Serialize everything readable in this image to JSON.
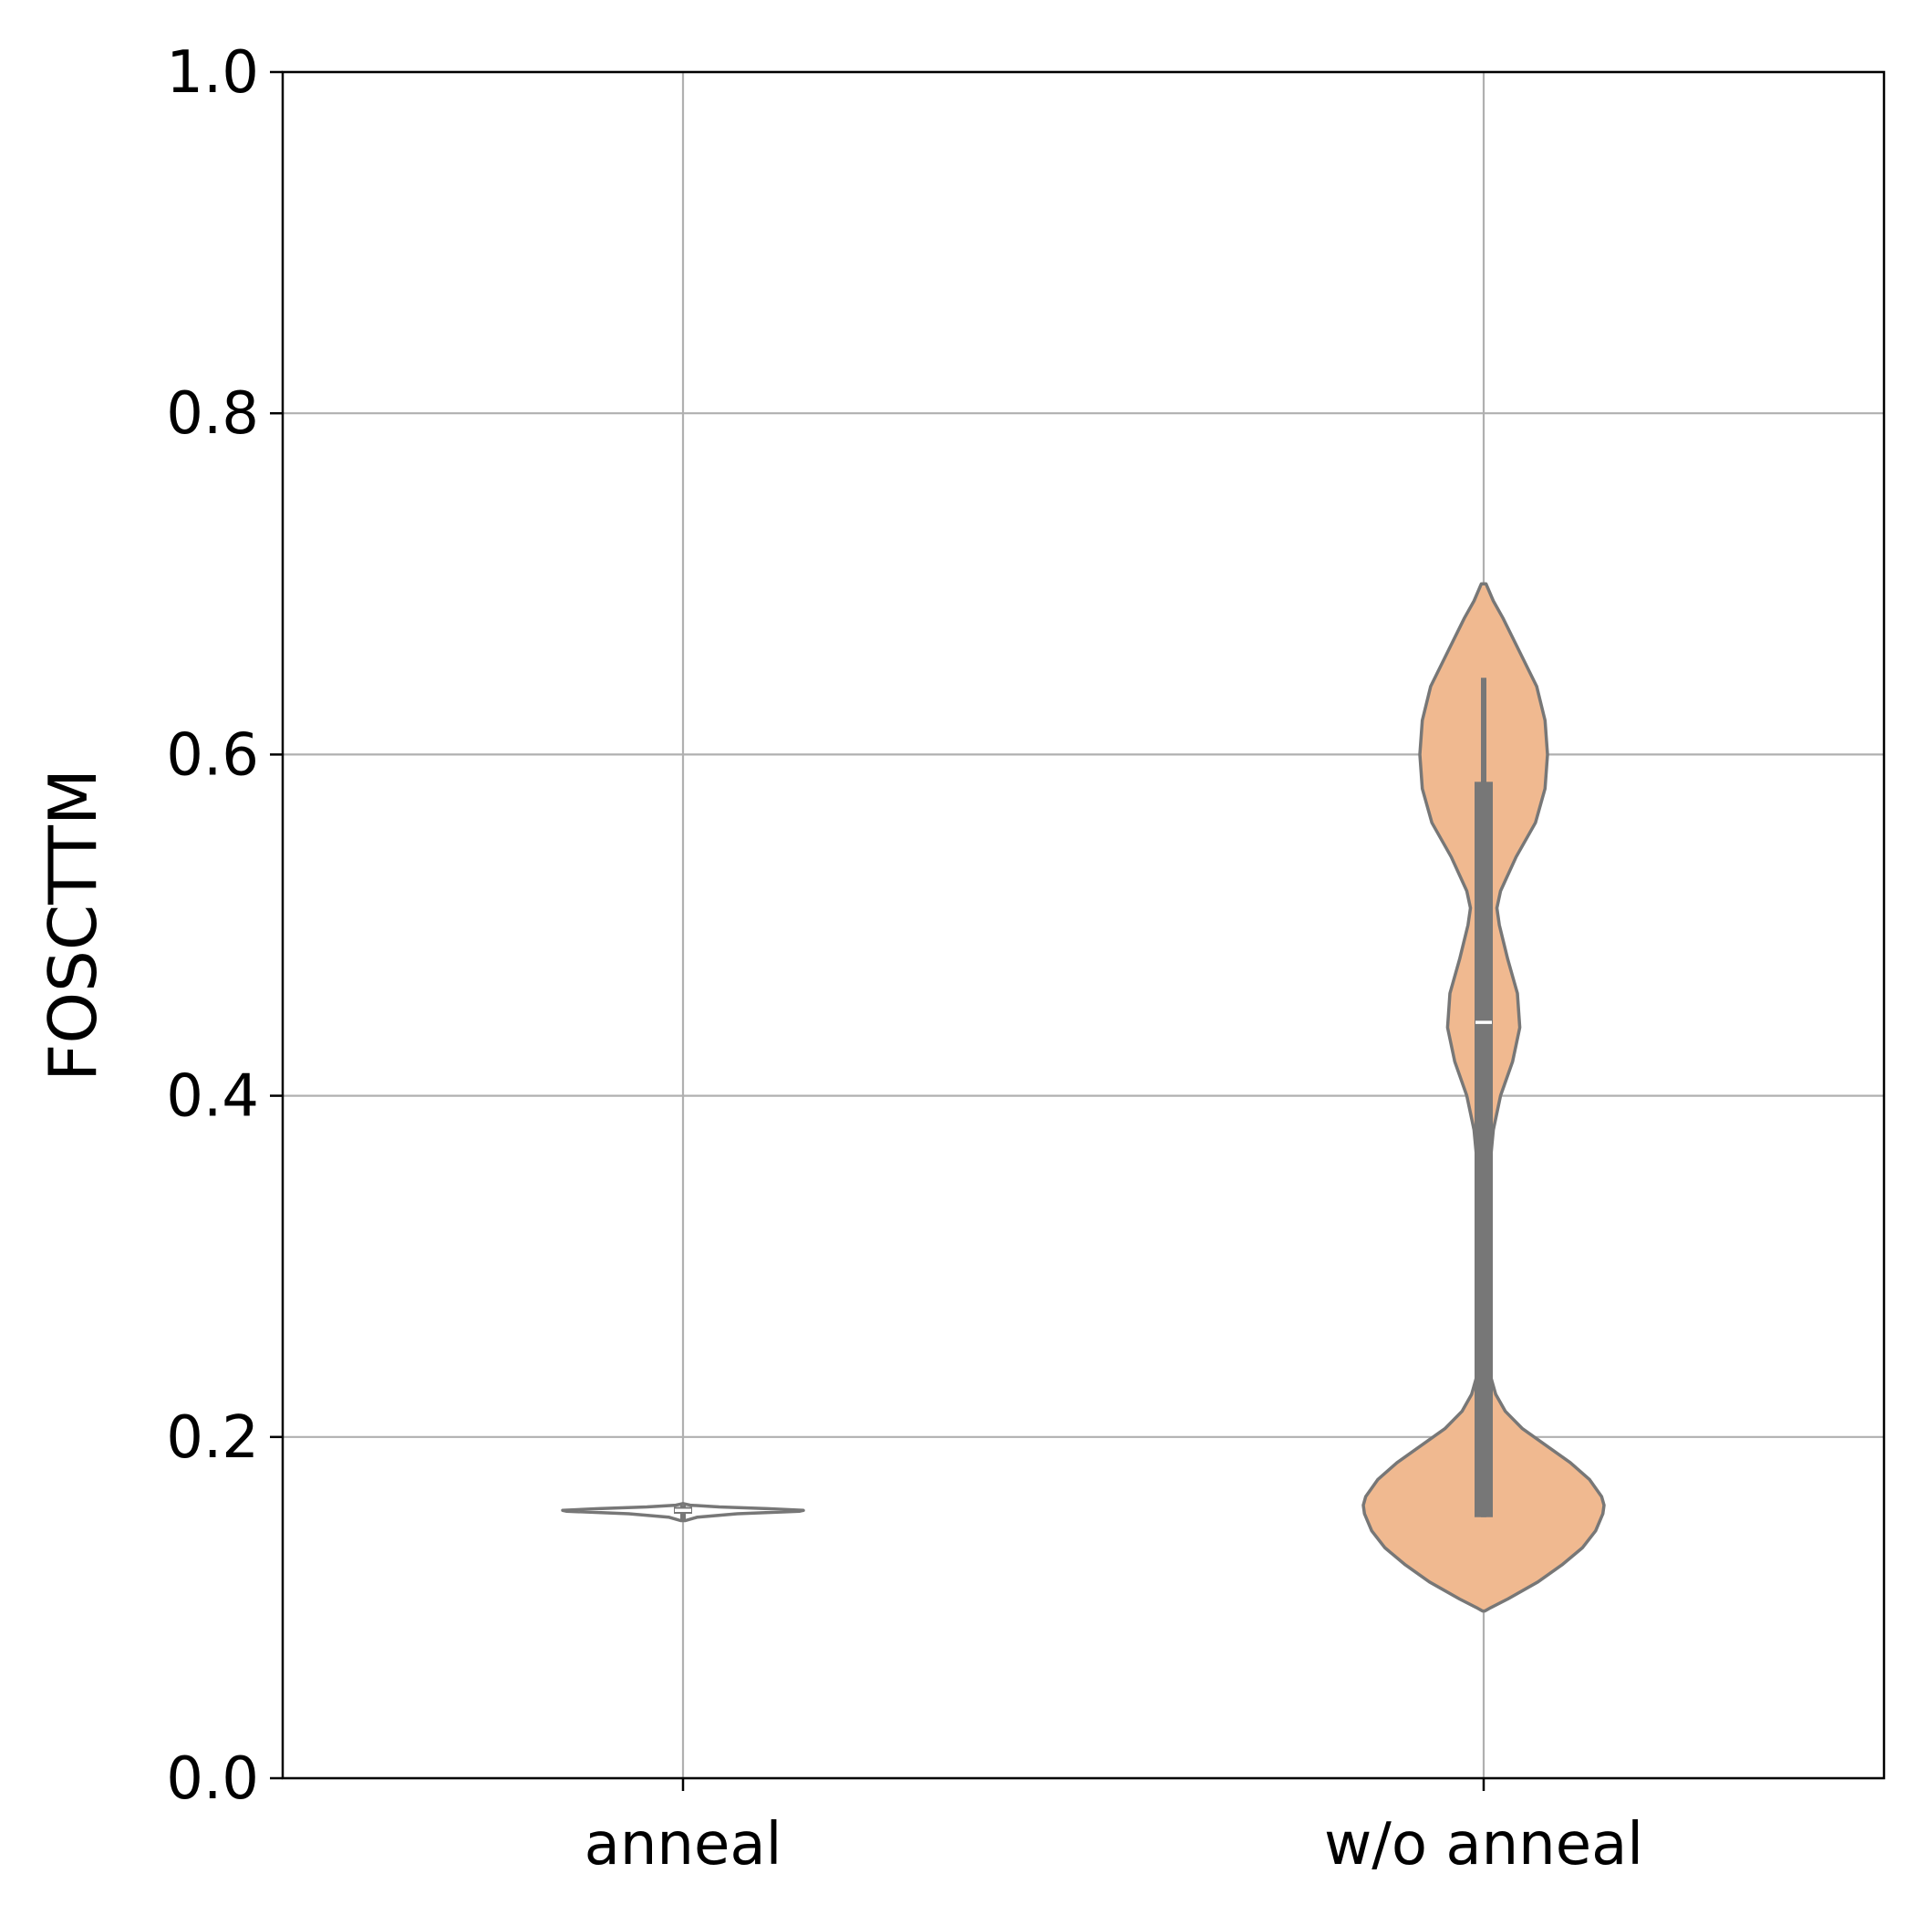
{
  "chart_data": {
    "type": "violin",
    "title": "",
    "xlabel": "",
    "ylabel": "FOSCTTM",
    "ylim": [
      0.0,
      1.0
    ],
    "yticks": [
      "0.0",
      "0.2",
      "0.4",
      "0.6",
      "0.8",
      "1.0"
    ],
    "grid": true,
    "categories": [
      "anneal",
      "w/o anneal"
    ],
    "series": [
      {
        "category": "anneal",
        "fill": "#ffffff",
        "edge": "#777777",
        "median": 0.157,
        "q1": 0.155,
        "q3": 0.159,
        "whisker_low": 0.151,
        "whisker_high": 0.16,
        "density_profile": [
          [
            0.151,
            0.02
          ],
          [
            0.153,
            0.12
          ],
          [
            0.155,
            0.45
          ],
          [
            0.1565,
            0.97
          ],
          [
            0.157,
            1.0
          ],
          [
            0.158,
            0.7
          ],
          [
            0.159,
            0.3
          ],
          [
            0.16,
            0.06
          ],
          [
            0.161,
            0.0
          ]
        ]
      },
      {
        "category": "w/o anneal",
        "fill": "#f0b990",
        "edge": "#777777",
        "median": 0.443,
        "q1": 0.153,
        "q3": 0.584,
        "whisker_low": 0.153,
        "whisker_high": 0.645,
        "density_profile": [
          [
            0.098,
            0.01
          ],
          [
            0.1,
            0.06
          ],
          [
            0.105,
            0.2
          ],
          [
            0.115,
            0.45
          ],
          [
            0.125,
            0.65
          ],
          [
            0.135,
            0.82
          ],
          [
            0.145,
            0.93
          ],
          [
            0.155,
            0.99
          ],
          [
            0.16,
            1.0
          ],
          [
            0.165,
            0.98
          ],
          [
            0.175,
            0.88
          ],
          [
            0.185,
            0.72
          ],
          [
            0.195,
            0.52
          ],
          [
            0.205,
            0.32
          ],
          [
            0.215,
            0.18
          ],
          [
            0.225,
            0.1
          ],
          [
            0.235,
            0.06
          ],
          [
            0.25,
            0.04
          ],
          [
            0.3,
            0.03
          ],
          [
            0.35,
            0.04
          ],
          [
            0.38,
            0.08
          ],
          [
            0.4,
            0.14
          ],
          [
            0.42,
            0.24
          ],
          [
            0.44,
            0.3
          ],
          [
            0.46,
            0.28
          ],
          [
            0.48,
            0.2
          ],
          [
            0.5,
            0.13
          ],
          [
            0.51,
            0.11
          ],
          [
            0.52,
            0.14
          ],
          [
            0.54,
            0.27
          ],
          [
            0.56,
            0.43
          ],
          [
            0.58,
            0.51
          ],
          [
            0.6,
            0.53
          ],
          [
            0.62,
            0.51
          ],
          [
            0.64,
            0.44
          ],
          [
            0.66,
            0.3
          ],
          [
            0.68,
            0.16
          ],
          [
            0.69,
            0.08
          ],
          [
            0.7,
            0.02
          ]
        ]
      }
    ]
  }
}
